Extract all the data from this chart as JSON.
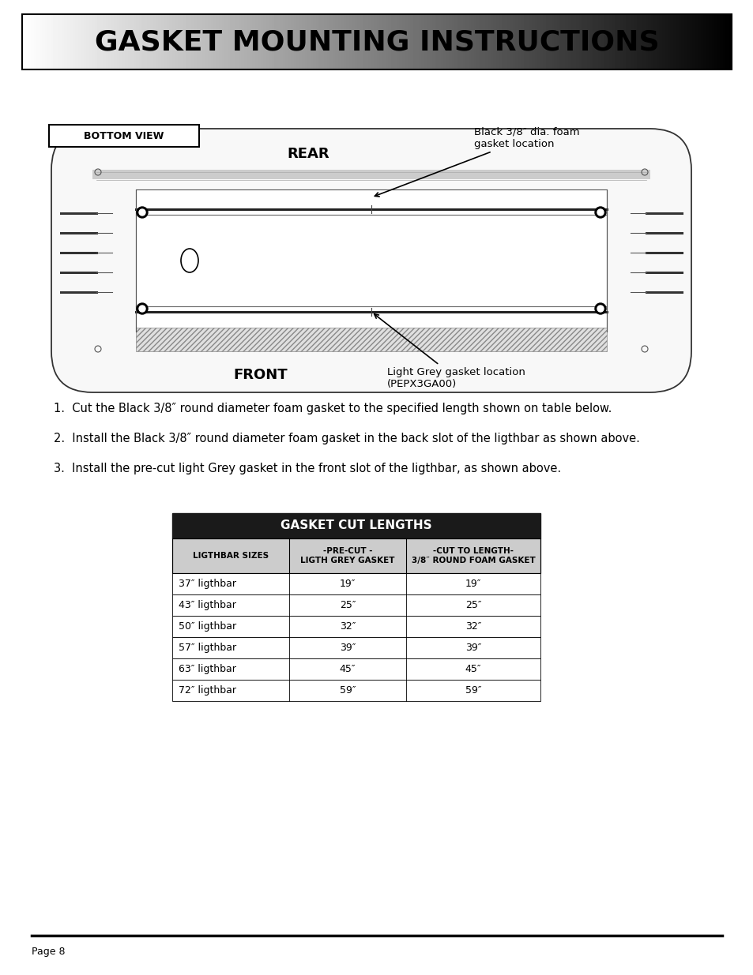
{
  "title": "GASKET MOUNTING INSTRUCTIONS",
  "title_fontsize": 26,
  "bg_color": "#ffffff",
  "bottom_view_label": "BOTTOM VIEW",
  "rear_label": "REAR",
  "front_label": "FRONT",
  "annotation_rear": "Black 3/8″ dia. foam\ngasket location",
  "annotation_front": "Light Grey gasket location\n(PEPX3GA00)",
  "instructions": [
    "1.  Cut the Black 3/8″ round diameter foam gasket to the specified length shown on table below.",
    "2.  Install the Black 3/8″ round diameter foam gasket in the back slot of the ligthbar as shown above.",
    "3.  Install the pre-cut light Grey gasket in the front slot of the ligthbar, as shown above."
  ],
  "table_title": "GASKET CUT LENGTHS",
  "table_header": [
    "LIGTHBAR SIZES",
    "-PRE-CUT -\nLIGTH GREY GASKET",
    "-CUT TO LENGTH-\n3/8″ ROUND FOAM GASKET"
  ],
  "table_rows": [
    [
      "37″ ligthbar",
      "19″",
      "19″"
    ],
    [
      "43″ ligthbar",
      "25″",
      "25″"
    ],
    [
      "50″ ligthbar",
      "32″",
      "32″"
    ],
    [
      "57″ ligthbar",
      "39″",
      "39″"
    ],
    [
      "63″ ligthbar",
      "45″",
      "45″"
    ],
    [
      "72″ ligthbar",
      "59″",
      "59″"
    ]
  ],
  "page_label": "Page 8"
}
